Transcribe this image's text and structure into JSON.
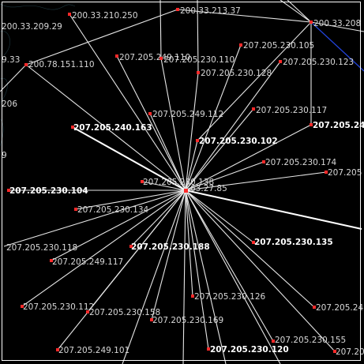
{
  "graph": {
    "hub": {
      "label": "63.27.85",
      "label_prefix": "207.205.230.138"
    },
    "colors": {
      "background": "#000000",
      "edge": "#e6e6e6",
      "node": "#ff2a2a",
      "label": "#d8d8d8",
      "blue_edge": "#2244dd",
      "frame": "#ffffff"
    },
    "nodes": [
      {
        "id": "n1",
        "label": "200.33.210.250"
      },
      {
        "id": "n2",
        "label": "200.33.209.29"
      },
      {
        "id": "n3",
        "label": "200.33.213.37"
      },
      {
        "id": "n4",
        "label": "200.33.208"
      },
      {
        "id": "n5",
        "label": "9.33"
      },
      {
        "id": "n6",
        "label": "200.78.151.110"
      },
      {
        "id": "n7",
        "label": "207.205.249.110"
      },
      {
        "id": "n8",
        "label": "207.205.230.110"
      },
      {
        "id": "n9",
        "label": "207.205.230.105"
      },
      {
        "id": "n10",
        "label": "207.205.230.123"
      },
      {
        "id": "n11",
        "label": "207.205.230.128"
      },
      {
        "id": "n12",
        "label": "206"
      },
      {
        "id": "n13",
        "label": "207.205.249.112"
      },
      {
        "id": "n14",
        "label": "207.205.230.117"
      },
      {
        "id": "n15",
        "label": "207.205.240.163"
      },
      {
        "id": "n16",
        "label": "207.205.230.102"
      },
      {
        "id": "n17",
        "label": "207.205.24"
      },
      {
        "id": "n18",
        "label": "9"
      },
      {
        "id": "n19",
        "label": "207.205.230.174"
      },
      {
        "id": "n20",
        "label": "207.205"
      },
      {
        "id": "n21",
        "label": "207.205.230.138"
      },
      {
        "id": "n22",
        "label": "207.205.230.104"
      },
      {
        "id": "n23",
        "label": "207.205.230.134"
      },
      {
        "id": "n24",
        "label": "207.205.230.118"
      },
      {
        "id": "n25",
        "label": "207.205.230.188"
      },
      {
        "id": "n26",
        "label": "207.205.230.135"
      },
      {
        "id": "n27",
        "label": "207.205.249.117"
      },
      {
        "id": "n28",
        "label": "207.205.230.126"
      },
      {
        "id": "n29",
        "label": "207.205.230.112"
      },
      {
        "id": "n30",
        "label": "207.205.230.158"
      },
      {
        "id": "n31",
        "label": "207.205.230.169"
      },
      {
        "id": "n32",
        "label": "207.205.24"
      },
      {
        "id": "n33",
        "label": "207.205.230.155"
      },
      {
        "id": "n34",
        "label": "207.205.249.101"
      },
      {
        "id": "n35",
        "label": "207.205.230.120"
      },
      {
        "id": "n36",
        "label": "207.20"
      }
    ]
  }
}
